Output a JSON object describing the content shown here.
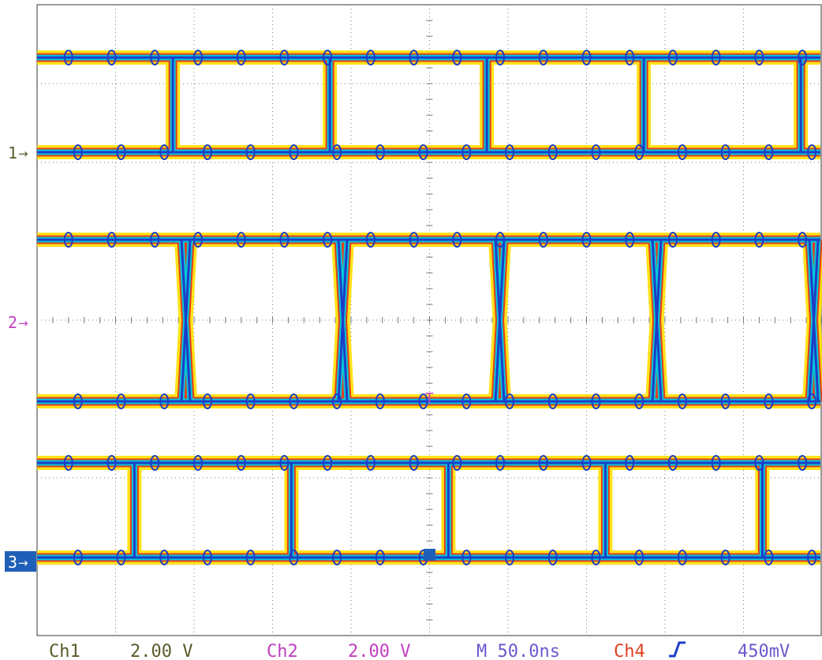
{
  "colors": {
    "grid": "#7a7a7a",
    "ch1": "#5a5a2a",
    "ch2": "#c040c0",
    "ch3": "#1f5fb8",
    "ch4": "#e04020",
    "timebase": "#6a5acd",
    "trace_core": "#1e3cc8",
    "trace_mid": "#00c8d8",
    "trace_edge1": "#e02020",
    "trace_edge2": "#ffe000"
  },
  "markers": {
    "ch1": "1",
    "ch2": "2",
    "ch3": "3",
    "trigger": "T"
  },
  "status_bar": {
    "ch1_label": "Ch1",
    "ch1_scale": "2.00 V",
    "ch2_label": "Ch2",
    "ch2_scale": "2.00 V",
    "timebase": "M 50.0ns",
    "trigger_source": "Ch4",
    "trigger_slope_icon": "rising-edge-icon",
    "trigger_level": "450mV"
  },
  "chart_data": {
    "type": "line",
    "x_divisions": 10,
    "y_divisions": 8,
    "grid": true,
    "series": [
      {
        "name": "Ch1",
        "volts_per_div": 2.0,
        "low_div": 0.0,
        "high_div": 1.2,
        "period_div": 2.0,
        "first_edge_div": 1.73,
        "edges": "rise"
      },
      {
        "name": "Ch2",
        "volts_per_div": 2.0,
        "low_div": -1.0,
        "high_div": 1.05,
        "period_div": 2.0,
        "first_edge_div": 1.91,
        "edges": "eye"
      },
      {
        "name": "Ch3",
        "low_div": 0.0,
        "high_div": 1.2,
        "period_div": 2.0,
        "first_edge_div": 1.24,
        "edges": "rise"
      }
    ]
  }
}
